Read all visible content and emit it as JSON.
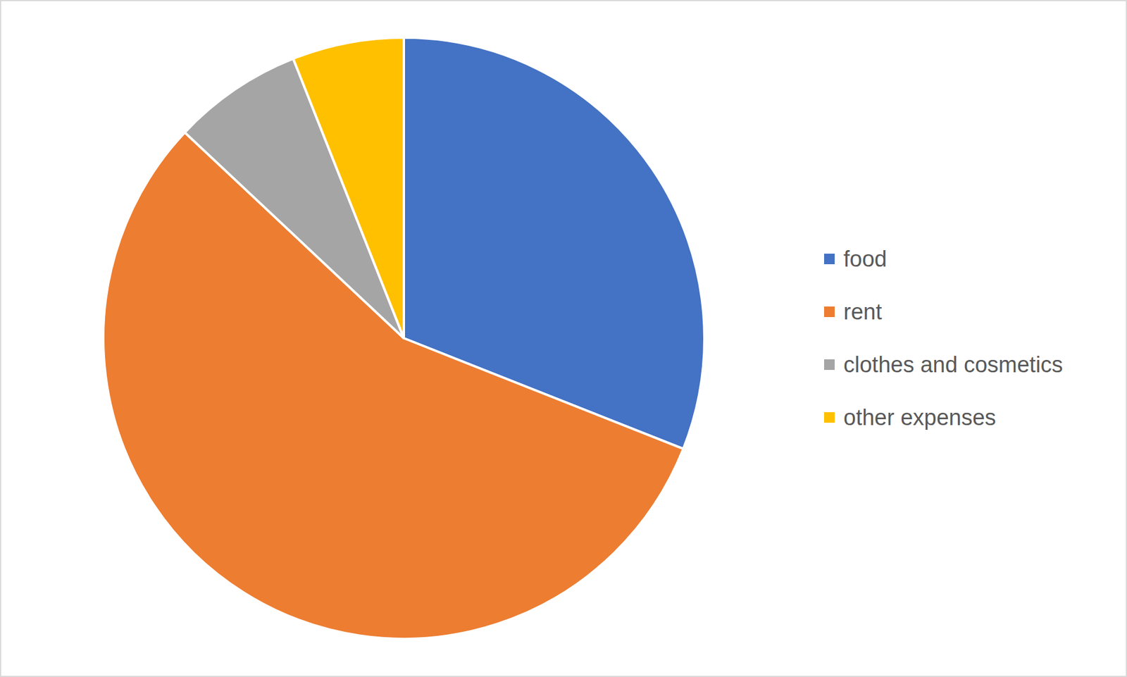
{
  "chart_data": {
    "type": "pie",
    "categories": [
      "food",
      "rent",
      "clothes and cosmetics",
      "other expenses"
    ],
    "values": [
      31,
      56,
      7,
      6
    ],
    "colors": [
      "#4472c4",
      "#ed7d31",
      "#a5a5a5",
      "#ffc000"
    ],
    "legend": "right"
  }
}
